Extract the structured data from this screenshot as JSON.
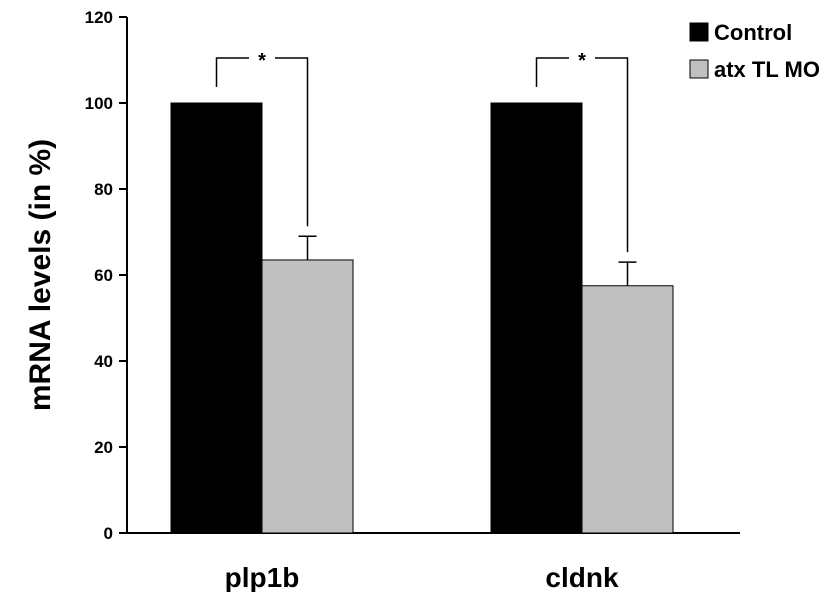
{
  "chart_data": {
    "type": "bar",
    "title": "",
    "xlabel": "",
    "ylabel": "mRNA levels (in %)",
    "ylim": [
      0,
      120
    ],
    "yticks": [
      0,
      20,
      40,
      60,
      80,
      100,
      120
    ],
    "grid": false,
    "legend_position": "top-right",
    "categories": [
      "plp1b",
      "cldnk"
    ],
    "series": [
      {
        "name": "Control",
        "color": "#000000",
        "values": [
          100,
          100
        ],
        "errors": [
          0,
          0
        ]
      },
      {
        "name": "atx TL MO",
        "color": "#c0c0c0",
        "values": [
          63.5,
          57.5
        ],
        "errors": [
          5.5,
          5.5
        ]
      }
    ],
    "annotations": [
      {
        "category": "plp1b",
        "label": "*",
        "type": "significance-bracket"
      },
      {
        "category": "cldnk",
        "label": "*",
        "type": "significance-bracket"
      }
    ]
  }
}
